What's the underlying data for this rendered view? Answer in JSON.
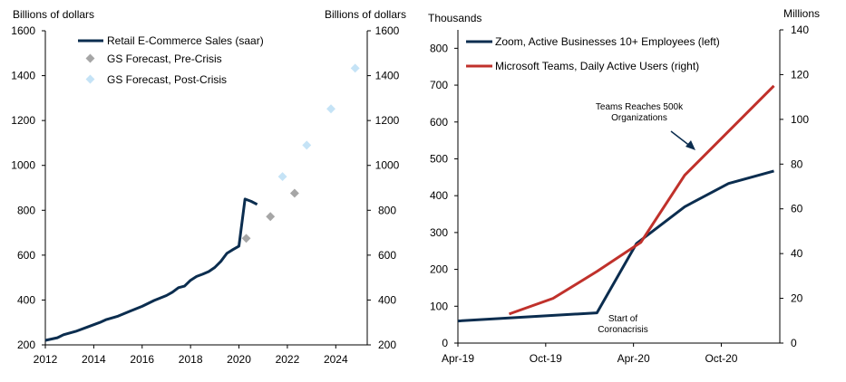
{
  "chart_data": [
    {
      "type": "line",
      "left_unit_label": "Billions of dollars",
      "right_unit_label": "Billions of dollars",
      "xlim": [
        2012,
        2025.3
      ],
      "ylim": [
        200,
        1600
      ],
      "x_ticks": [
        "2012",
        "2014",
        "2016",
        "2018",
        "2020",
        "2022",
        "2024"
      ],
      "y_ticks": [
        "200",
        "400",
        "600",
        "800",
        "1000",
        "1200",
        "1400",
        "1600"
      ],
      "series": [
        {
          "name": "Retail E-Commerce Sales (saar)",
          "style": "line",
          "color": "#0b2d4f",
          "points": [
            [
              2012.0,
              220
            ],
            [
              2012.5,
              232
            ],
            [
              2012.75,
              245
            ],
            [
              2013.25,
              260
            ],
            [
              2013.75,
              280
            ],
            [
              2014.25,
              300
            ],
            [
              2014.5,
              312
            ],
            [
              2015.0,
              328
            ],
            [
              2015.5,
              350
            ],
            [
              2016.0,
              372
            ],
            [
              2016.5,
              398
            ],
            [
              2017.0,
              420
            ],
            [
              2017.25,
              435
            ],
            [
              2017.5,
              455
            ],
            [
              2017.75,
              462
            ],
            [
              2018.0,
              488
            ],
            [
              2018.25,
              505
            ],
            [
              2018.5,
              515
            ],
            [
              2018.75,
              527
            ],
            [
              2019.0,
              545
            ],
            [
              2019.25,
              572
            ],
            [
              2019.5,
              608
            ],
            [
              2019.75,
              625
            ],
            [
              2020.0,
              640
            ],
            [
              2020.25,
              850
            ],
            [
              2020.5,
              840
            ],
            [
              2020.75,
              826
            ]
          ]
        },
        {
          "name": "GS Forecast, Pre-Crisis",
          "style": "diamond",
          "color": "#a6a6a6",
          "points": [
            [
              2020.3,
              675
            ],
            [
              2021.3,
              772
            ],
            [
              2022.3,
              876
            ]
          ]
        },
        {
          "name": "GS Forecast, Post-Crisis",
          "style": "diamond",
          "color": "#c5e3f6",
          "points": [
            [
              2021.8,
              950
            ],
            [
              2022.8,
              1090
            ],
            [
              2023.8,
              1252
            ],
            [
              2024.8,
              1433
            ]
          ]
        }
      ]
    },
    {
      "type": "line",
      "left_unit_label": "Thousands",
      "right_unit_label": "Millions",
      "x_ticks": [
        "Apr-19",
        "Oct-19",
        "Apr-20",
        "Oct-20"
      ],
      "x_tick_months": [
        0,
        6,
        12,
        18
      ],
      "xlim": [
        0,
        22
      ],
      "ylim_left": [
        0,
        850
      ],
      "ylim_right": [
        0,
        140
      ],
      "y_ticks_left": [
        "0",
        "100",
        "200",
        "300",
        "400",
        "500",
        "600",
        "700",
        "800"
      ],
      "y_ticks_right": [
        "0",
        "20",
        "40",
        "60",
        "80",
        "100",
        "120",
        "140"
      ],
      "series": [
        {
          "name": "Zoom, Active Businesses 10+ Employees (left)",
          "axis": "left",
          "color": "#0b2d4f",
          "points": [
            [
              0,
              60
            ],
            [
              9.5,
              82
            ],
            [
              12.2,
              270
            ],
            [
              15.5,
              370
            ],
            [
              18.5,
              433
            ],
            [
              21.6,
              467
            ]
          ]
        },
        {
          "name": "Microsoft Teams, Daily Active Users (right)",
          "axis": "right",
          "color": "#c0312b",
          "points": [
            [
              3.5,
              13
            ],
            [
              6.5,
              20
            ],
            [
              9.5,
              32
            ],
            [
              12.5,
              45
            ],
            [
              15.5,
              75
            ],
            [
              21.6,
              115
            ]
          ]
        }
      ],
      "annotations": [
        {
          "id": "teams",
          "lines": [
            "Teams Reaches 500k",
            "Organizations"
          ],
          "month": 16,
          "value": 523,
          "points_to_month": 16,
          "points_to_value": 528
        },
        {
          "id": "corona",
          "lines": [
            "Start of",
            "Coronacrisis"
          ],
          "month": 11.8,
          "value": 78
        }
      ]
    }
  ]
}
